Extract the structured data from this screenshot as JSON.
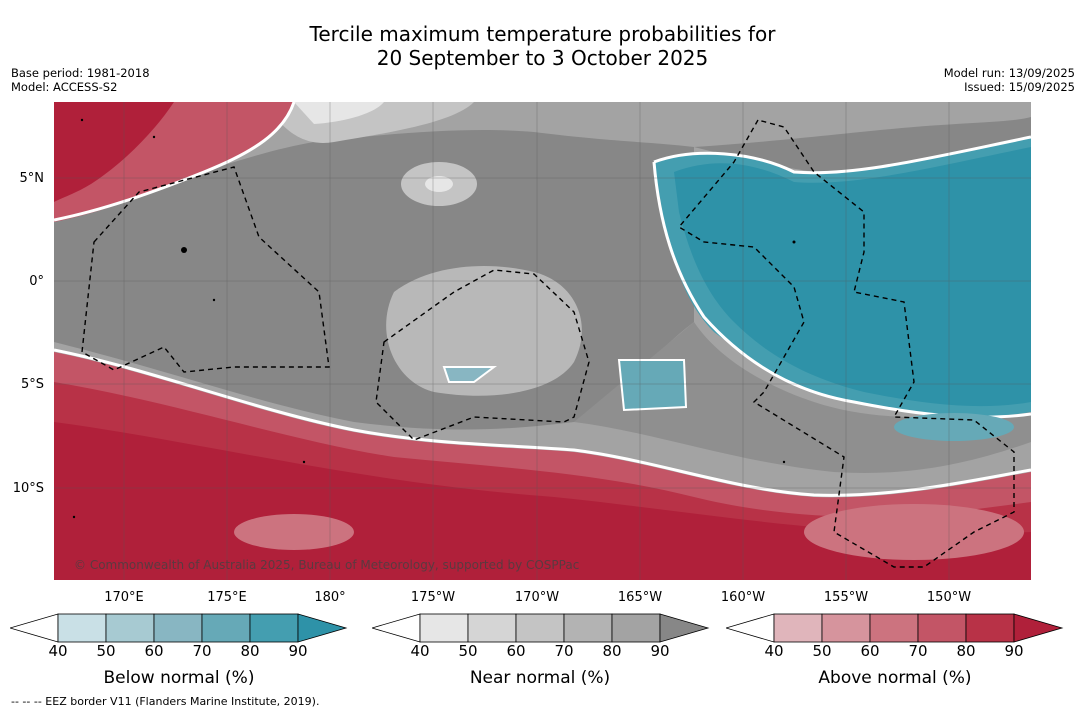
{
  "title_line1": "Tercile maximum temperature probabilities for",
  "title_line2": "20 September to 3 October 2025",
  "base_period": "Base period: 1981-2018",
  "model": "Model: ACCESS-S2",
  "model_run": "Model run: 13/09/2025",
  "issued": "Issued: 15/09/2025",
  "lat_labels": [
    "5°N",
    "0°",
    "5°S",
    "10°S"
  ],
  "lon_labels": [
    "170°E",
    "175°E",
    "180°",
    "175°W",
    "170°W",
    "165°W",
    "160°W",
    "155°W",
    "150°W"
  ],
  "copyright": "© Commonwealth of Australia 2025, Bureau of Meteorology, supported by COSPPac",
  "footer": "--  --  -- EEZ border V11 (Flanders Marine Institute, 2019).",
  "legend": {
    "below": {
      "title": "Below normal (%)",
      "ticks": [
        "40",
        "50",
        "60",
        "70",
        "80",
        "90"
      ],
      "colors": [
        "#ffffff",
        "#c9e0e6",
        "#a7cad2",
        "#88b6c2",
        "#66a9b7",
        "#449eb0",
        "#2e92a8"
      ]
    },
    "near": {
      "title": "Near normal (%)",
      "ticks": [
        "40",
        "50",
        "60",
        "70",
        "80",
        "90"
      ],
      "colors": [
        "#ffffff",
        "#e6e6e6",
        "#d5d5d5",
        "#c4c4c4",
        "#b3b3b3",
        "#a3a3a3",
        "#878787"
      ]
    },
    "above": {
      "title": "Above normal (%)",
      "ticks": [
        "40",
        "50",
        "60",
        "70",
        "80",
        "90"
      ],
      "colors": [
        "#ffffff",
        "#e0b5bb",
        "#d6949d",
        "#cc737f",
        "#c35566",
        "#b83247",
        "#b0203a"
      ]
    }
  }
}
